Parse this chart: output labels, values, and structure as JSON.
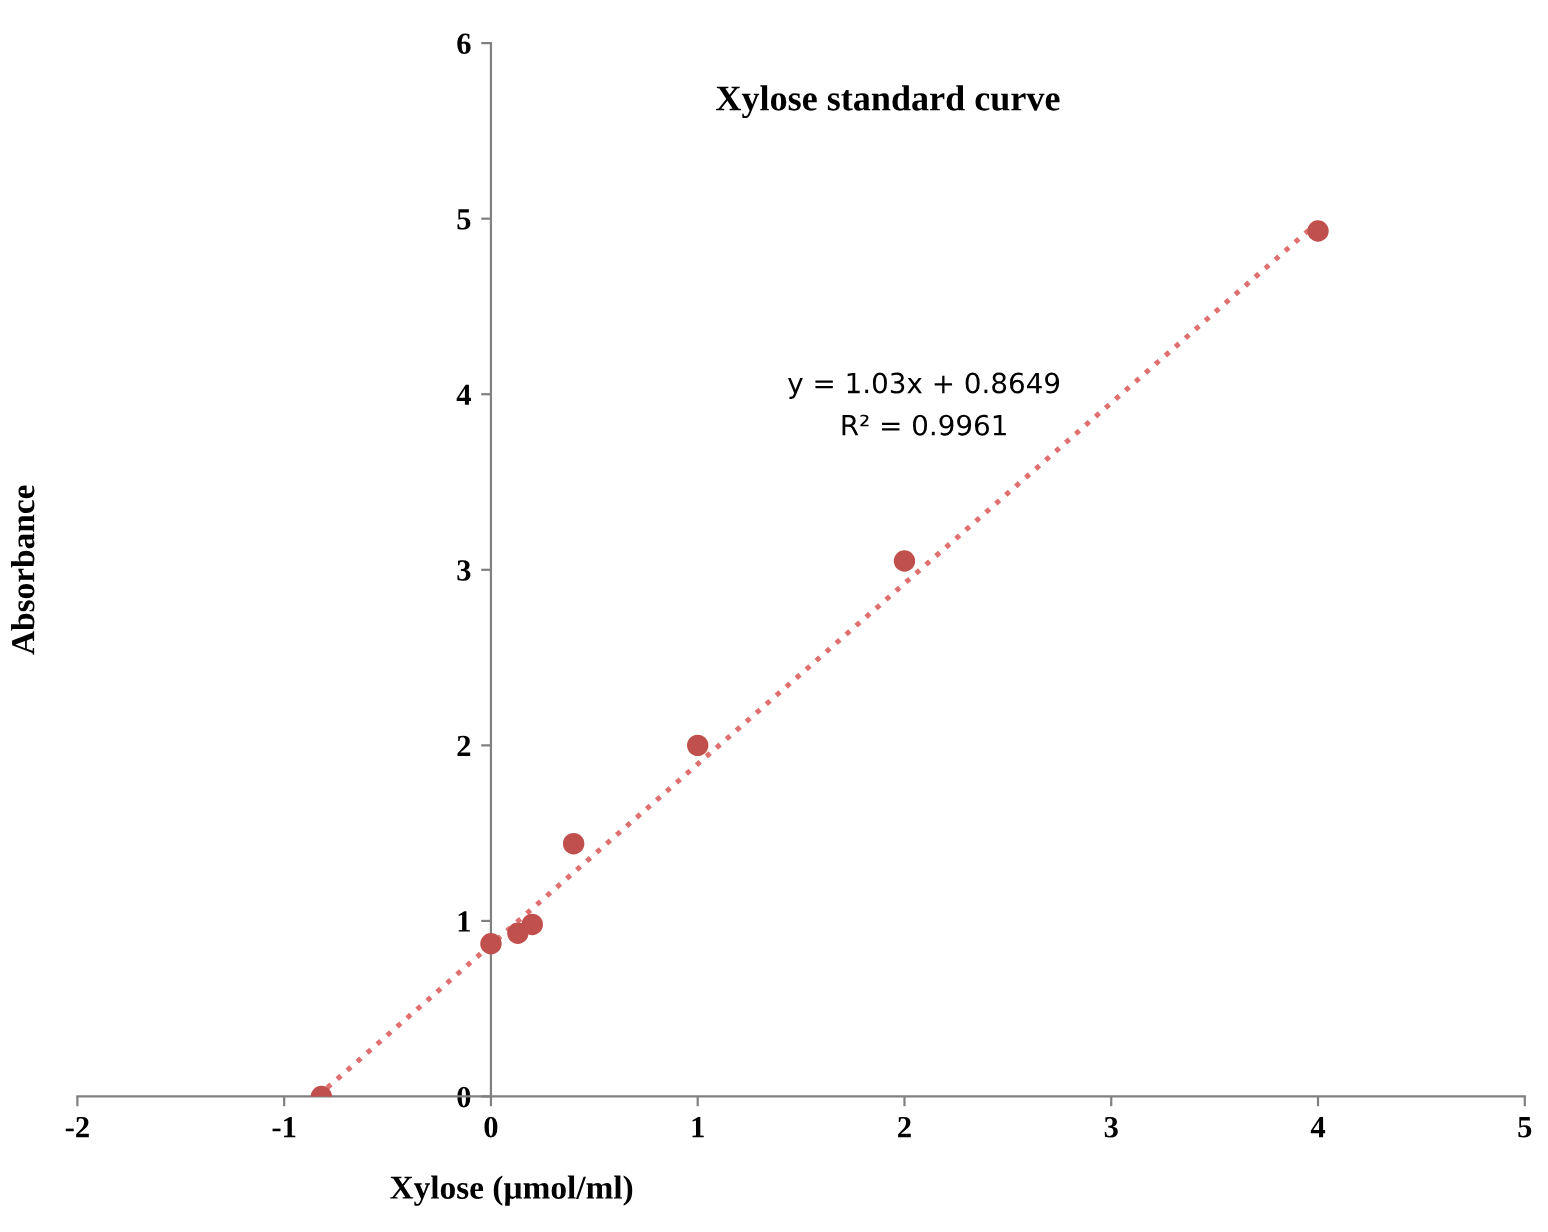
{
  "chart_data": {
    "type": "scatter",
    "title": "Xylose standard curve",
    "xlabel": "Xylose (µmol/ml)",
    "ylabel": "Absorbance",
    "series": [
      {
        "color": "#c0504d",
        "x": [
          -0.82,
          0,
          0.13,
          0.2,
          0.4,
          1,
          2,
          4
        ],
        "values": [
          0,
          0.87,
          0.93,
          0.98,
          1.44,
          2.0,
          3.05,
          4.93
        ],
        "marker": "circle"
      },
      {
        "type": "line",
        "color": "#e07070",
        "x": [
          -0.84,
          4
        ],
        "values": [
          0,
          4.98
        ],
        "line_style": "dotted",
        "marker": "none"
      }
    ],
    "annotations": [
      "y = 1.03x + 0.8649",
      "R² = 0.9961"
    ],
    "xlim": [
      -2,
      5
    ],
    "ylim": [
      0,
      6
    ],
    "xticks": [
      -2,
      -1,
      0,
      1,
      2,
      3,
      4,
      5
    ],
    "yticks": [
      0,
      1,
      2,
      3,
      4,
      5,
      6
    ],
    "grid": false,
    "legend": false
  }
}
